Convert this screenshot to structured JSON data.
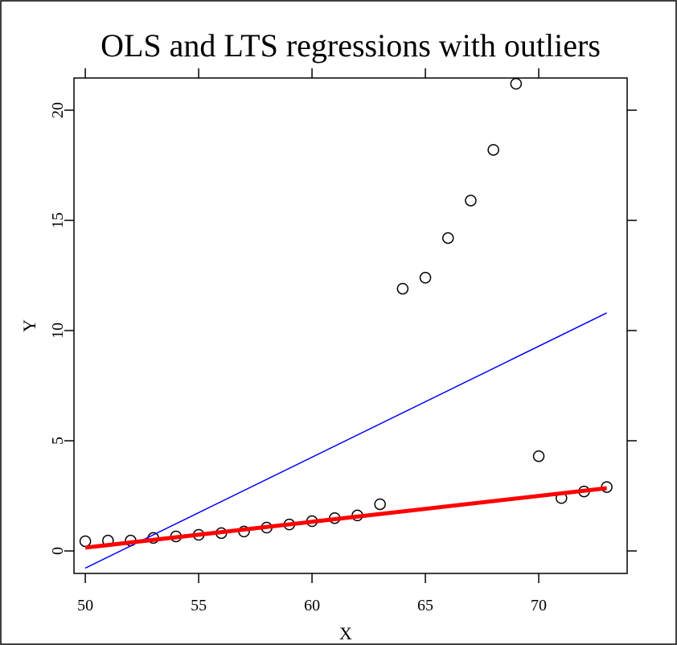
{
  "chart_data": {
    "type": "scatter",
    "title": "OLS and LTS regressions with outliers",
    "x_label": "X",
    "y_label": "Y",
    "x": [
      50,
      51,
      52,
      53,
      54,
      55,
      56,
      57,
      58,
      59,
      60,
      61,
      62,
      63,
      64,
      65,
      66,
      67,
      68,
      69,
      70,
      71,
      72,
      73
    ],
    "values": [
      0.44,
      0.47,
      0.47,
      0.59,
      0.66,
      0.73,
      0.81,
      0.88,
      1.06,
      1.2,
      1.35,
      1.49,
      1.61,
      2.12,
      11.9,
      12.4,
      14.2,
      15.9,
      18.2,
      21.2,
      4.3,
      2.4,
      2.7,
      2.9
    ],
    "point_color": "#000000",
    "lines": [
      {
        "color": "#0000ff",
        "width": 1.5,
        "x": [
          50,
          73
        ],
        "values": [
          -0.78,
          10.8
        ]
      },
      {
        "color": "#ff0000",
        "width": 5,
        "x": [
          50,
          73
        ],
        "values": [
          0.15,
          2.85
        ]
      }
    ],
    "xlim": [
      49.5,
      73.9
    ],
    "ylim": [
      -1.02,
      21.46
    ],
    "xticks": [
      50,
      55,
      60,
      65,
      70
    ],
    "yticks": [
      0,
      5,
      10,
      15,
      20
    ]
  }
}
